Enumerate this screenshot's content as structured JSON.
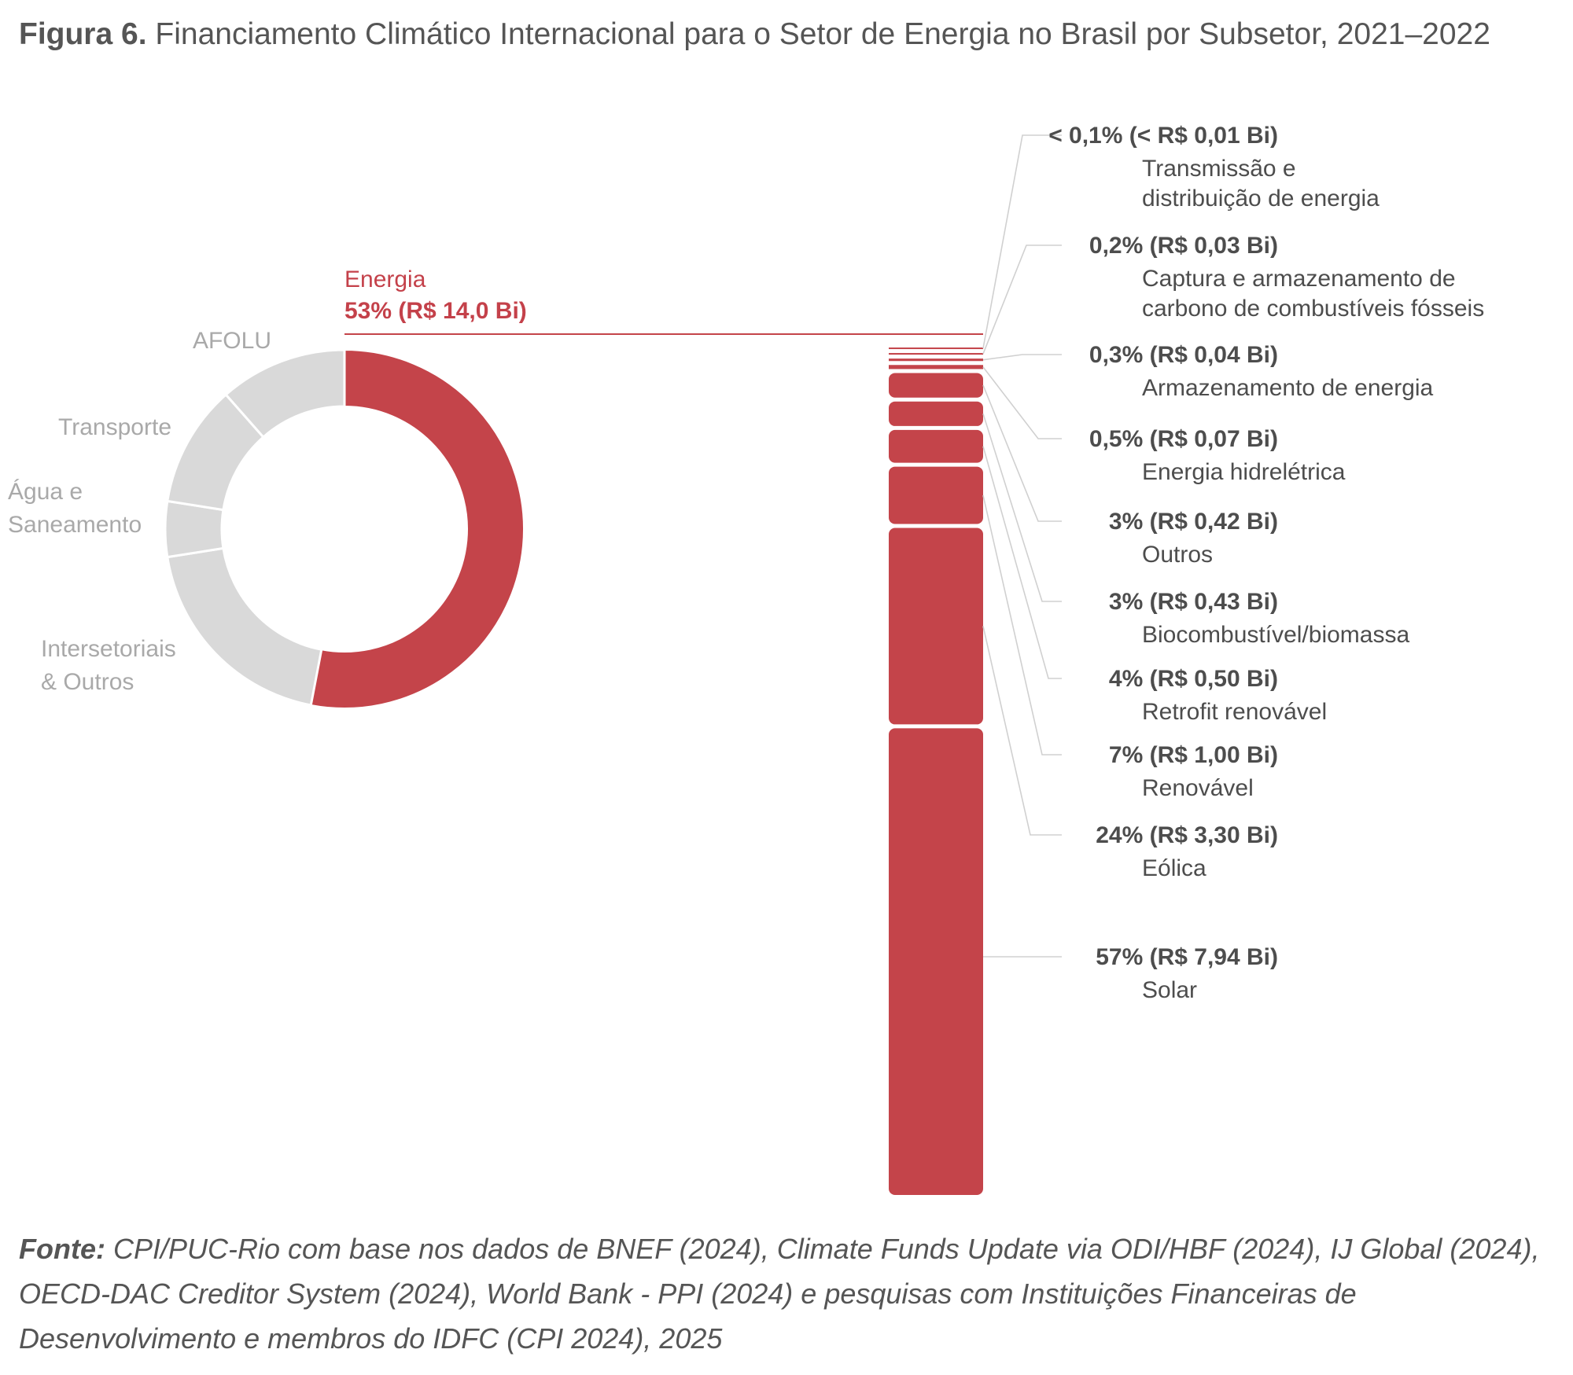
{
  "title": {
    "figure_label": "Figura 6.",
    "text": "Financiamento Climático Internacional para o Setor de Energia no Brasil por Subsetor, 2021–2022"
  },
  "source": {
    "label": "Fonte:",
    "text": "CPI/PUC-Rio com base nos dados de BNEF (2024), Climate Funds Update via ODI/HBF (2024), IJ Global (2024), OECD-DAC Creditor System (2024), World Bank - PPI (2024) e pesquisas com Instituições Financeiras de Desenvolvimento e membros do IDFC (CPI 2024), 2025"
  },
  "colors": {
    "highlight": "#c4444a",
    "muted": "#d9d9d9",
    "connector": "#d0d0d0"
  },
  "chart_data": [
    {
      "type": "pie",
      "variant": "donut",
      "highlight": {
        "name": "Energia",
        "value_label": "53% (R$ 14,0 Bi)",
        "share": 53
      },
      "muted_segments": [
        {
          "name": "Intersetoriais\n& Outros",
          "share": 19.5
        },
        {
          "name": "Água e\nSaneamento",
          "share": 5
        },
        {
          "name": "Transporte",
          "share": 11
        },
        {
          "name": "AFOLU",
          "share": 11.5
        }
      ]
    },
    {
      "type": "bar",
      "variant": "stacked-column",
      "series": [
        {
          "name": "Solar",
          "percent": 57,
          "value_bi": 7.94,
          "value_label": "57% (R$ 7,94 Bi)"
        },
        {
          "name": "Eólica",
          "percent": 24,
          "value_bi": 3.3,
          "value_label": "24% (R$ 3,30 Bi)"
        },
        {
          "name": "Renovável",
          "percent": 7,
          "value_bi": 1.0,
          "value_label": "7% (R$ 1,00 Bi)"
        },
        {
          "name": "Retrofit renovável",
          "percent": 4,
          "value_bi": 0.5,
          "value_label": "4% (R$ 0,50 Bi)"
        },
        {
          "name": "Biocombustível/biomassa",
          "percent": 3,
          "value_bi": 0.43,
          "value_label": "3% (R$ 0,43 Bi)"
        },
        {
          "name": "Outros",
          "percent": 3,
          "value_bi": 0.42,
          "value_label": "3% (R$ 0,42 Bi)"
        },
        {
          "name": "Energia hidrelétrica",
          "percent": 0.5,
          "value_bi": 0.07,
          "value_label": "0,5% (R$ 0,07 Bi)"
        },
        {
          "name": "Armazenamento de energia",
          "percent": 0.3,
          "value_bi": 0.04,
          "value_label": "0,3% (R$ 0,04 Bi)"
        },
        {
          "name": "Captura e armazenamento de\ncarbono de combustíveis fósseis",
          "percent": 0.2,
          "value_bi": 0.03,
          "value_label": "0,2% (R$ 0,03 Bi)"
        },
        {
          "name": "Transmissão e\ndistribuição de energia",
          "percent": 0.1,
          "value_bi": 0.01,
          "value_label": "< 0,1% (< R$ 0,01 Bi)"
        }
      ]
    }
  ]
}
